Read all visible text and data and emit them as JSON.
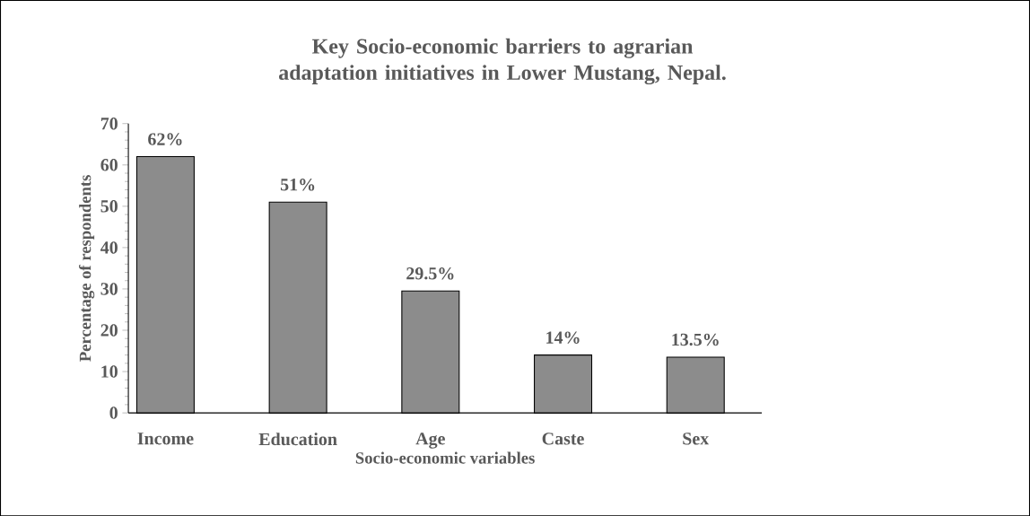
{
  "chart_data": {
    "type": "bar",
    "title": "Key Socio-economic barriers to agrarian adaptation initiatives in Lower Mustang, Nepal.",
    "xlabel": "Socio-economic variables",
    "ylabel": "Percentage of respondents",
    "categories": [
      "Income",
      "Education",
      "Age",
      "Caste",
      "Sex"
    ],
    "values": [
      62,
      51,
      29.5,
      14,
      13.5
    ],
    "value_labels": [
      "62%",
      "51%",
      "29.5%",
      "14%",
      "13.5%"
    ],
    "color": "#8c8c8c",
    "ylim": [
      0,
      70
    ],
    "yticks": [
      0,
      10,
      20,
      30,
      40,
      50,
      60,
      70
    ],
    "grid": false
  }
}
